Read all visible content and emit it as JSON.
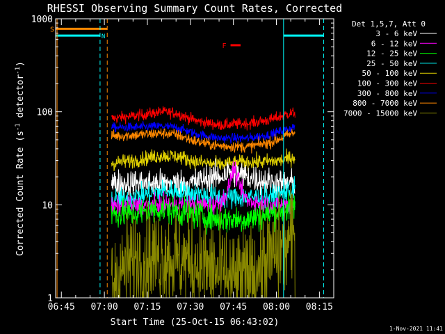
{
  "chart_data": {
    "type": "line",
    "title": "RHESSI Observing Summary Count Rates, Corrected",
    "xlabel": "Start Time (25-Oct-15 06:43:02)",
    "ylabel_main": "Corrected Count Rate (s",
    "ylabel_sup1": "-1",
    "ylabel_mid": " detector",
    "ylabel_sup2": "-1",
    "ylabel_end": ")",
    "footer": " 1-Nov-2021 11:41",
    "yscale": "log",
    "ylim": [
      1,
      1000
    ],
    "xlim_min": [
      403,
      500
    ],
    "xticks": [
      {
        "min": 405,
        "label": "06:45"
      },
      {
        "min": 420,
        "label": "07:00"
      },
      {
        "min": 435,
        "label": "07:15"
      },
      {
        "min": 450,
        "label": "07:30"
      },
      {
        "min": 465,
        "label": "07:45"
      },
      {
        "min": 480,
        "label": "08:00"
      },
      {
        "min": 495,
        "label": "08:15"
      }
    ],
    "yticks": [
      {
        "v": 1,
        "label": "1"
      },
      {
        "v": 10,
        "label": "10"
      },
      {
        "v": 100,
        "label": "100"
      },
      {
        "v": 1000,
        "label": "1000"
      }
    ],
    "legend": {
      "title": "Det 1,5,7, Att 0",
      "placement": "right",
      "entries": [
        {
          "label": "3 - 6 keV",
          "color": "#ffffff"
        },
        {
          "label": "6 - 12 keV",
          "color": "#ff00ff"
        },
        {
          "label": "12 - 25 keV",
          "color": "#00ff00"
        },
        {
          "label": "25 - 50 keV",
          "color": "#00ffff"
        },
        {
          "label": "50 - 100 keV",
          "color": "#e0d000"
        },
        {
          "label": "100 - 300 keV",
          "color": "#ff0000"
        },
        {
          "label": "300 - 800 keV",
          "color": "#0000ff"
        },
        {
          "label": "800 - 7000 keV",
          "color": "#ff8800"
        },
        {
          "label": "7000 - 15000 keV",
          "color": "#888800"
        }
      ]
    },
    "data_window": [
      422.5,
      486.5
    ],
    "series": [
      {
        "name": "100 - 300 keV",
        "color": "#ff0000",
        "noise": 0.06,
        "points": [
          [
            422.5,
            85
          ],
          [
            430,
            90
          ],
          [
            440,
            100
          ],
          [
            445,
            97
          ],
          [
            452,
            80
          ],
          [
            460,
            72
          ],
          [
            470,
            75
          ],
          [
            478,
            82
          ],
          [
            484,
            95
          ],
          [
            486.5,
            98
          ]
        ]
      },
      {
        "name": "300 - 800 keV",
        "color": "#0000ff",
        "noise": 0.05,
        "points": [
          [
            422.5,
            68
          ],
          [
            430,
            68
          ],
          [
            440,
            70
          ],
          [
            445,
            68
          ],
          [
            452,
            58
          ],
          [
            460,
            52
          ],
          [
            470,
            52
          ],
          [
            478,
            57
          ],
          [
            484,
            65
          ],
          [
            486.5,
            70
          ]
        ]
      },
      {
        "name": "800 - 7000 keV",
        "color": "#ff8800",
        "noise": 0.06,
        "points": [
          [
            422.5,
            55
          ],
          [
            430,
            56
          ],
          [
            440,
            59
          ],
          [
            445,
            57
          ],
          [
            452,
            48
          ],
          [
            460,
            43
          ],
          [
            470,
            42
          ],
          [
            478,
            47
          ],
          [
            484,
            56
          ],
          [
            486.5,
            60
          ]
        ]
      },
      {
        "name": "50 - 100 keV",
        "color": "#e0d000",
        "noise": 0.08,
        "points": [
          [
            422.5,
            28
          ],
          [
            430,
            30
          ],
          [
            440,
            34
          ],
          [
            446,
            33
          ],
          [
            452,
            29
          ],
          [
            460,
            27
          ],
          [
            470,
            29
          ],
          [
            476,
            29
          ],
          [
            482,
            30
          ],
          [
            486.5,
            33
          ]
        ]
      },
      {
        "name": "3 - 6 keV",
        "color": "#ffffff",
        "noise": 0.15,
        "points": [
          [
            422.5,
            17
          ],
          [
            430,
            17
          ],
          [
            440,
            17
          ],
          [
            450,
            17
          ],
          [
            455,
            19
          ],
          [
            460,
            20
          ],
          [
            464,
            23
          ],
          [
            470,
            20
          ],
          [
            476,
            18
          ],
          [
            482,
            17
          ],
          [
            486.5,
            17
          ]
        ]
      },
      {
        "name": "25 - 50 keV",
        "color": "#00ffff",
        "noise": 0.12,
        "points": [
          [
            422.5,
            11
          ],
          [
            430,
            12
          ],
          [
            440,
            14
          ],
          [
            445,
            14
          ],
          [
            452,
            13
          ],
          [
            460,
            12
          ],
          [
            470,
            12
          ],
          [
            478,
            12
          ],
          [
            484,
            14
          ],
          [
            486.5,
            15
          ]
        ]
      },
      {
        "name": "6 - 12 keV",
        "color": "#ff00ff",
        "noise": 0.1,
        "points": [
          [
            422.5,
            9.5
          ],
          [
            440,
            10
          ],
          [
            450,
            10
          ],
          [
            458,
            10
          ],
          [
            461,
            11
          ],
          [
            463,
            14
          ],
          [
            465,
            25
          ],
          [
            466,
            20
          ],
          [
            468,
            14
          ],
          [
            470,
            11
          ],
          [
            478,
            10
          ],
          [
            486.5,
            10
          ]
        ]
      },
      {
        "name": "12 - 25 keV",
        "color": "#00ff00",
        "noise": 0.15,
        "points": [
          [
            422.5,
            8
          ],
          [
            430,
            8
          ],
          [
            440,
            9
          ],
          [
            450,
            8
          ],
          [
            460,
            7
          ],
          [
            470,
            7
          ],
          [
            478,
            8
          ],
          [
            484,
            9
          ],
          [
            486.5,
            10
          ]
        ]
      },
      {
        "name": "7000 - 15000 keV",
        "color": "#888800",
        "noise": 0.55,
        "points": [
          [
            422.5,
            1.5
          ],
          [
            430,
            2.5
          ],
          [
            440,
            2.8
          ],
          [
            450,
            2.5
          ],
          [
            458,
            2
          ],
          [
            465,
            1.5
          ],
          [
            470,
            1.6
          ],
          [
            476,
            2.4
          ],
          [
            482,
            3.3
          ],
          [
            486.5,
            4.5
          ]
        ]
      }
    ],
    "annotations": {
      "saa_label": "S",
      "saa_color": "#ff8800",
      "saa_range": [
        403,
        421
      ],
      "saa_value": 780,
      "night_label": "N",
      "night_color": "#00ffff",
      "night_ranges": [
        [
          403,
          418.5
        ],
        [
          482.5,
          496.5
        ]
      ],
      "night_value": 660,
      "flare_label": "F",
      "flare_color": "#ff0000",
      "flare_range": [
        464,
        467.5
      ],
      "flare_value": 520,
      "orange_lines": [
        {
          "min": 403.5,
          "style": "solid"
        },
        {
          "min": 421,
          "style": "dashed"
        }
      ],
      "cyan_lines": [
        {
          "min": 403,
          "style": "solid"
        },
        {
          "min": 418.5,
          "style": "dashed"
        },
        {
          "min": 482.5,
          "style": "solid"
        },
        {
          "min": 496.5,
          "style": "dashed"
        }
      ]
    }
  }
}
